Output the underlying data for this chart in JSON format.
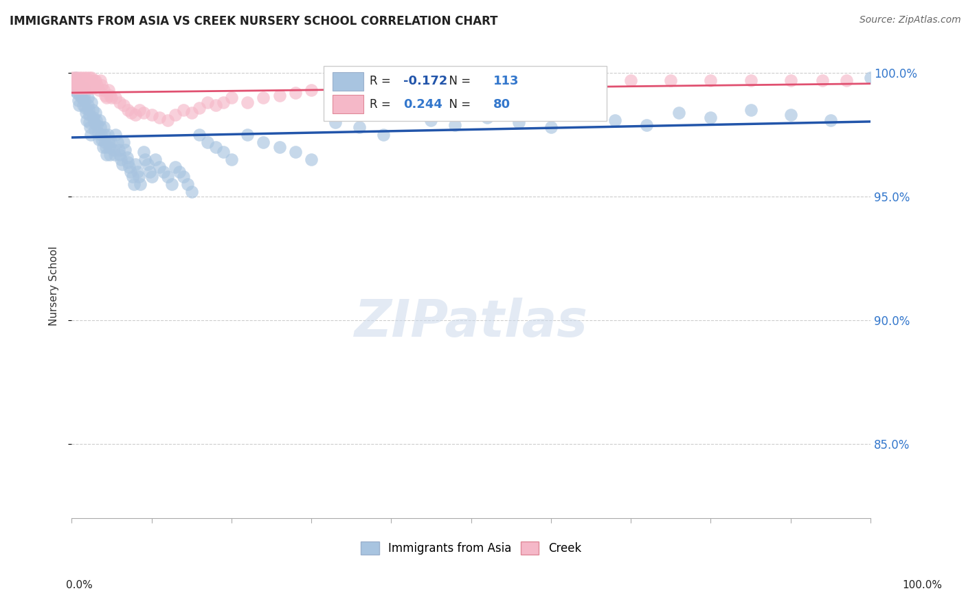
{
  "title": "IMMIGRANTS FROM ASIA VS CREEK NURSERY SCHOOL CORRELATION CHART",
  "source": "Source: ZipAtlas.com",
  "ylabel": "Nursery School",
  "xlim": [
    0.0,
    1.0
  ],
  "ylim": [
    0.82,
    1.008
  ],
  "yticks": [
    0.85,
    0.9,
    0.95,
    1.0
  ],
  "ytick_labels": [
    "85.0%",
    "90.0%",
    "95.0%",
    "100.0%"
  ],
  "blue_R": -0.172,
  "blue_N": 113,
  "pink_R": 0.244,
  "pink_N": 80,
  "blue_color": "#a8c4e0",
  "pink_color": "#f5b8c8",
  "blue_line_color": "#2255aa",
  "pink_line_color": "#e05070",
  "watermark": "ZIPatlas",
  "legend_label_blue": "Immigrants from Asia",
  "legend_label_pink": "Creek",
  "blue_scatter_x": [
    0.002,
    0.003,
    0.005,
    0.006,
    0.007,
    0.008,
    0.009,
    0.01,
    0.01,
    0.012,
    0.013,
    0.014,
    0.015,
    0.015,
    0.016,
    0.017,
    0.018,
    0.019,
    0.02,
    0.02,
    0.021,
    0.022,
    0.022,
    0.023,
    0.024,
    0.025,
    0.026,
    0.027,
    0.028,
    0.029,
    0.03,
    0.031,
    0.032,
    0.033,
    0.034,
    0.035,
    0.036,
    0.037,
    0.038,
    0.039,
    0.04,
    0.041,
    0.042,
    0.043,
    0.044,
    0.045,
    0.046,
    0.047,
    0.048,
    0.05,
    0.052,
    0.054,
    0.055,
    0.057,
    0.059,
    0.06,
    0.062,
    0.063,
    0.065,
    0.067,
    0.069,
    0.07,
    0.072,
    0.074,
    0.076,
    0.078,
    0.08,
    0.082,
    0.084,
    0.086,
    0.09,
    0.092,
    0.095,
    0.098,
    0.1,
    0.105,
    0.11,
    0.115,
    0.12,
    0.125,
    0.13,
    0.135,
    0.14,
    0.145,
    0.15,
    0.16,
    0.17,
    0.18,
    0.19,
    0.2,
    0.22,
    0.24,
    0.26,
    0.28,
    0.3,
    0.33,
    0.36,
    0.39,
    0.42,
    0.45,
    0.48,
    0.52,
    0.56,
    0.6,
    0.64,
    0.68,
    0.72,
    0.76,
    0.8,
    0.85,
    0.9,
    0.95,
    1.0
  ],
  "blue_scatter_y": [
    0.993,
    0.996,
    0.998,
    0.995,
    0.992,
    0.989,
    0.987,
    0.995,
    0.991,
    0.993,
    0.99,
    0.987,
    0.994,
    0.991,
    0.989,
    0.986,
    0.984,
    0.981,
    0.99,
    0.987,
    0.985,
    0.983,
    0.98,
    0.978,
    0.975,
    0.988,
    0.985,
    0.982,
    0.98,
    0.977,
    0.984,
    0.981,
    0.979,
    0.976,
    0.973,
    0.981,
    0.978,
    0.975,
    0.973,
    0.97,
    0.978,
    0.975,
    0.972,
    0.97,
    0.967,
    0.975,
    0.972,
    0.97,
    0.967,
    0.972,
    0.969,
    0.967,
    0.975,
    0.972,
    0.969,
    0.967,
    0.965,
    0.963,
    0.972,
    0.969,
    0.966,
    0.964,
    0.962,
    0.96,
    0.958,
    0.955,
    0.963,
    0.96,
    0.958,
    0.955,
    0.968,
    0.965,
    0.963,
    0.96,
    0.958,
    0.965,
    0.962,
    0.96,
    0.958,
    0.955,
    0.962,
    0.96,
    0.958,
    0.955,
    0.952,
    0.975,
    0.972,
    0.97,
    0.968,
    0.965,
    0.975,
    0.972,
    0.97,
    0.968,
    0.965,
    0.98,
    0.978,
    0.975,
    0.983,
    0.981,
    0.979,
    0.982,
    0.98,
    0.978,
    0.983,
    0.981,
    0.979,
    0.984,
    0.982,
    0.985,
    0.983,
    0.981,
    0.998
  ],
  "pink_scatter_x": [
    0.001,
    0.002,
    0.003,
    0.004,
    0.005,
    0.006,
    0.007,
    0.008,
    0.009,
    0.01,
    0.011,
    0.012,
    0.013,
    0.014,
    0.015,
    0.016,
    0.017,
    0.018,
    0.019,
    0.02,
    0.021,
    0.022,
    0.023,
    0.024,
    0.025,
    0.026,
    0.027,
    0.028,
    0.03,
    0.032,
    0.034,
    0.036,
    0.038,
    0.04,
    0.042,
    0.044,
    0.046,
    0.048,
    0.05,
    0.055,
    0.06,
    0.065,
    0.07,
    0.075,
    0.08,
    0.085,
    0.09,
    0.1,
    0.11,
    0.12,
    0.13,
    0.14,
    0.15,
    0.16,
    0.17,
    0.18,
    0.19,
    0.2,
    0.22,
    0.24,
    0.26,
    0.28,
    0.3,
    0.33,
    0.36,
    0.39,
    0.42,
    0.45,
    0.48,
    0.52,
    0.56,
    0.6,
    0.65,
    0.7,
    0.75,
    0.8,
    0.85,
    0.9,
    0.94,
    0.97
  ],
  "pink_scatter_y": [
    0.998,
    0.996,
    0.994,
    0.998,
    0.996,
    0.994,
    0.998,
    0.996,
    0.994,
    0.998,
    0.996,
    0.994,
    0.998,
    0.996,
    0.994,
    0.998,
    0.996,
    0.994,
    0.998,
    0.996,
    0.994,
    0.998,
    0.996,
    0.994,
    0.998,
    0.996,
    0.994,
    0.997,
    0.997,
    0.995,
    0.993,
    0.997,
    0.995,
    0.993,
    0.991,
    0.99,
    0.993,
    0.991,
    0.99,
    0.99,
    0.988,
    0.987,
    0.985,
    0.984,
    0.983,
    0.985,
    0.984,
    0.983,
    0.982,
    0.981,
    0.983,
    0.985,
    0.984,
    0.986,
    0.988,
    0.987,
    0.988,
    0.99,
    0.988,
    0.99,
    0.991,
    0.992,
    0.993,
    0.994,
    0.993,
    0.994,
    0.995,
    0.994,
    0.995,
    0.996,
    0.995,
    0.996,
    0.996,
    0.997,
    0.997,
    0.997,
    0.997,
    0.997,
    0.997,
    0.997
  ]
}
